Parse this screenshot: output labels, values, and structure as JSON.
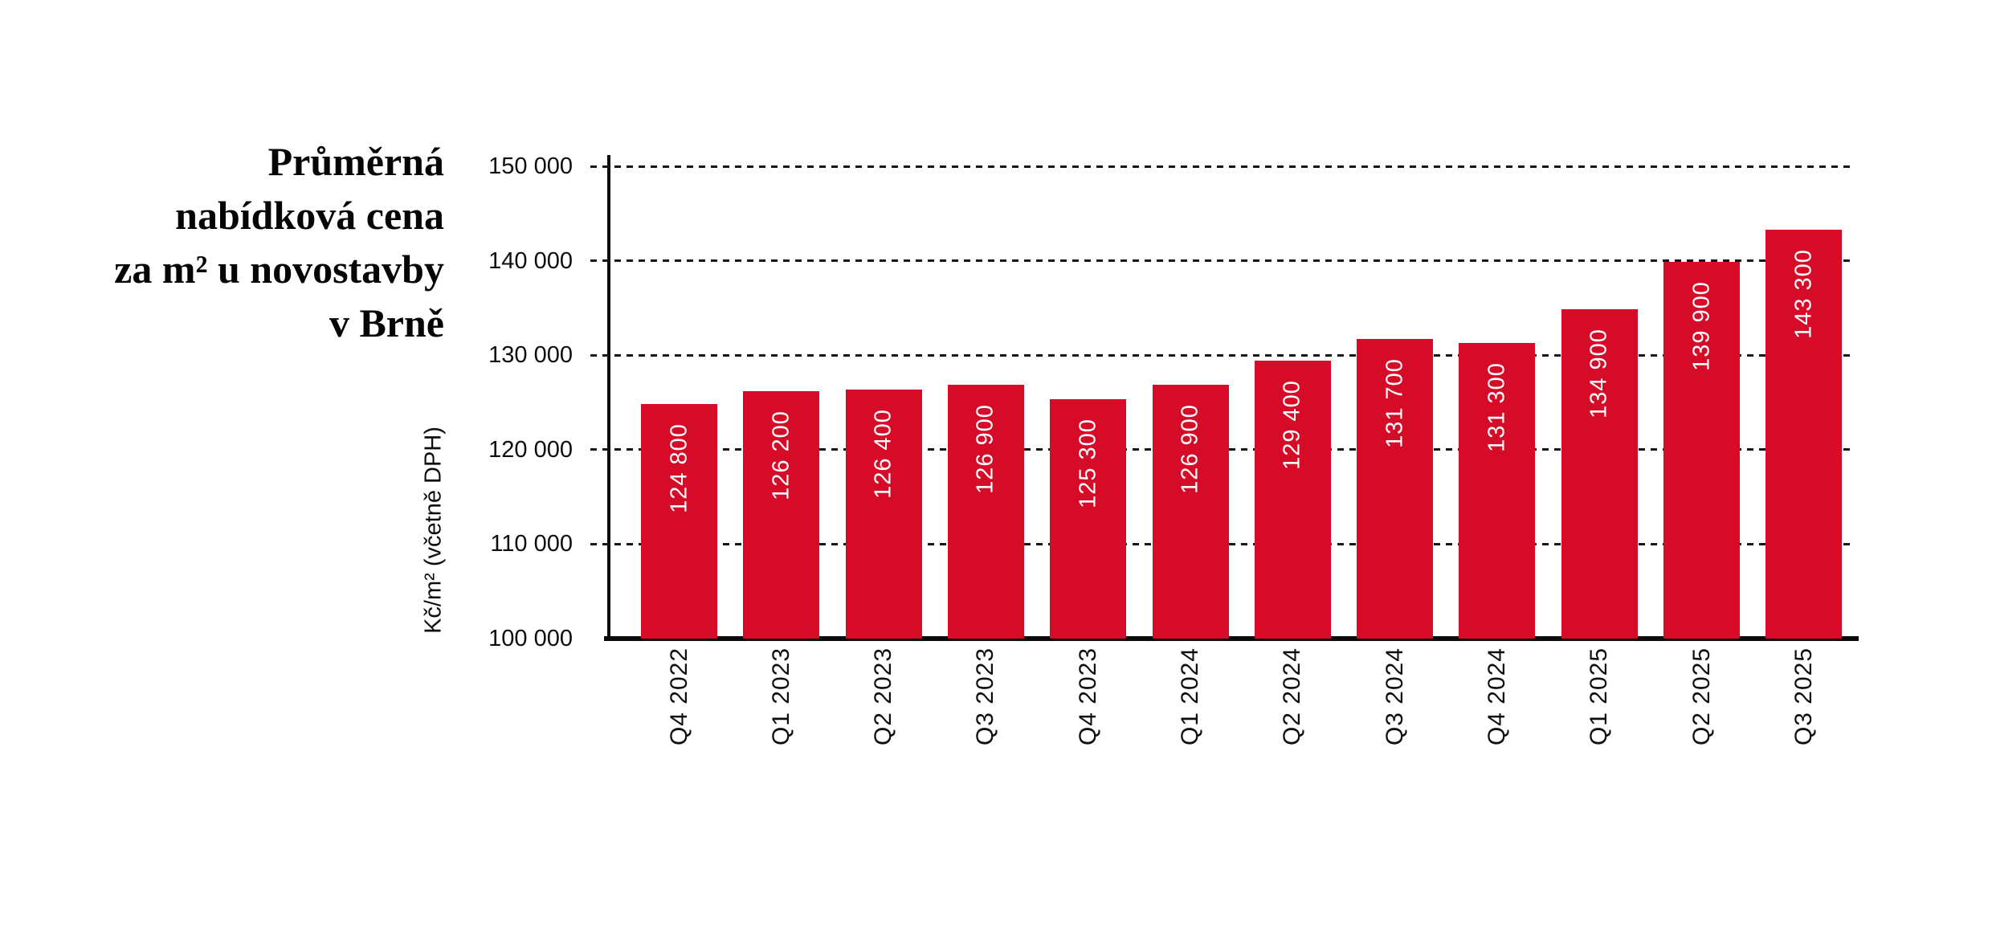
{
  "title": {
    "lines": [
      "Průměrná",
      "nabídková cena",
      "za m² u novostavby",
      "v Brně"
    ]
  },
  "chart_data": {
    "type": "bar",
    "title": "Průměrná nabídková cena za m² u novostavby v Brně",
    "xlabel": "",
    "ylabel": "Kč/m² (včetně DPH)",
    "categories": [
      "Q4 2022",
      "Q1 2023",
      "Q2 2023",
      "Q3 2023",
      "Q4 2023",
      "Q1 2024",
      "Q2 2024",
      "Q3 2024",
      "Q4 2024",
      "Q1 2025",
      "Q2 2025",
      "Q3 2025"
    ],
    "values": [
      124800,
      126200,
      126400,
      126900,
      125300,
      126900,
      129400,
      131700,
      131300,
      134900,
      139900,
      143300
    ],
    "value_labels": [
      "124 800",
      "126 200",
      "126 400",
      "126 900",
      "125 300",
      "126 900",
      "129 400",
      "131 700",
      "131 300",
      "134 900",
      "139 900",
      "143 300"
    ],
    "ylim": [
      100000,
      150000
    ],
    "yticks": [
      100000,
      110000,
      120000,
      130000,
      140000,
      150000
    ],
    "ytick_labels": [
      "100 000",
      "110 000",
      "120 000",
      "130 000",
      "140 000",
      "150 000"
    ],
    "grid": "horizontal-dashed",
    "gridline_at_baseline": false,
    "legend": "none",
    "value_labels_position": "inside-top-rotated-90",
    "xtick_labels_rotated": true,
    "bar_color": "#d60b28",
    "value_label_color": "#ffffff",
    "axis_color": "#0b0b0b",
    "text_color": "#0d0d0d"
  }
}
